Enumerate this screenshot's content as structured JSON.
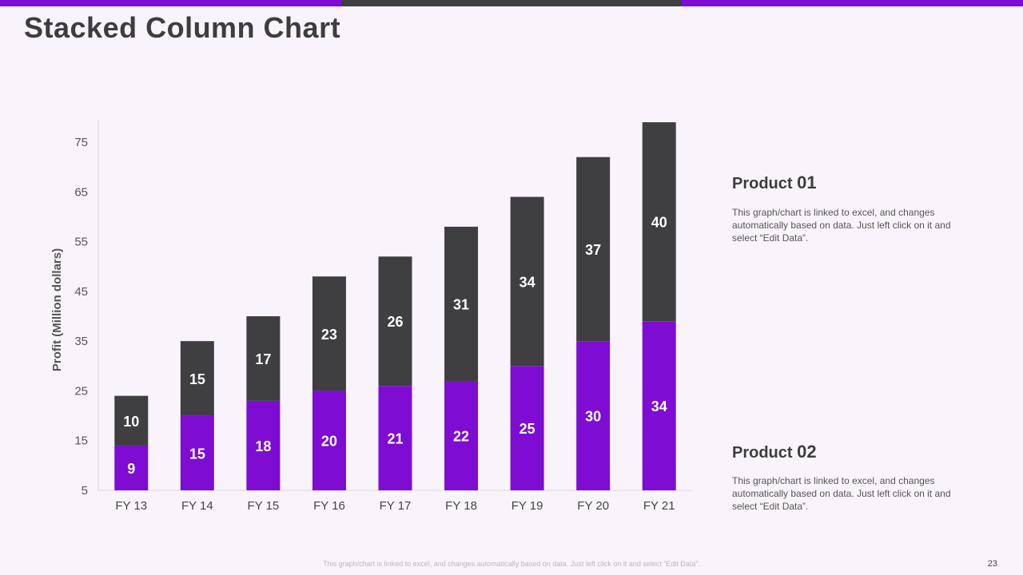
{
  "slide": {
    "title": "Stacked Column Chart",
    "footer_note": "This graph/chart is linked to excel, and changes automatically based on data. Just left click on it and select “Edit Data”.",
    "page_number": "23"
  },
  "colors": {
    "product01": "#3f3e40",
    "product02": "#7e0cd3",
    "bar_top_a": "#7e0cd3",
    "bar_top_b": "#3f3e40"
  },
  "legend": [
    {
      "label": "Product",
      "number": "01",
      "description": "This graph/chart is linked to excel, and changes automatically based on data. Just left click on it and select “Edit Data”."
    },
    {
      "label": "Product",
      "number": "02",
      "description": "This graph/chart is linked to excel, and changes automatically based on data. Just left click on it and select “Edit Data”."
    }
  ],
  "chart_data": {
    "type": "bar",
    "stacked": true,
    "title": "",
    "xlabel": "",
    "ylabel": "Profit  (Million dollars)",
    "categories": [
      "FY 13",
      "FY 14",
      "FY 15",
      "FY 16",
      "FY 17",
      "FY 18",
      "FY 19",
      "FY 20",
      "FY 21"
    ],
    "series": [
      {
        "name": "Product 02",
        "values": [
          9,
          15,
          18,
          20,
          21,
          22,
          25,
          30,
          34
        ]
      },
      {
        "name": "Product 01",
        "values": [
          10,
          15,
          17,
          23,
          26,
          31,
          34,
          37,
          40
        ]
      }
    ],
    "ylim": [
      5,
      75
    ],
    "yticks": [
      5,
      15,
      25,
      35,
      45,
      55,
      65,
      75
    ],
    "grid": false
  }
}
